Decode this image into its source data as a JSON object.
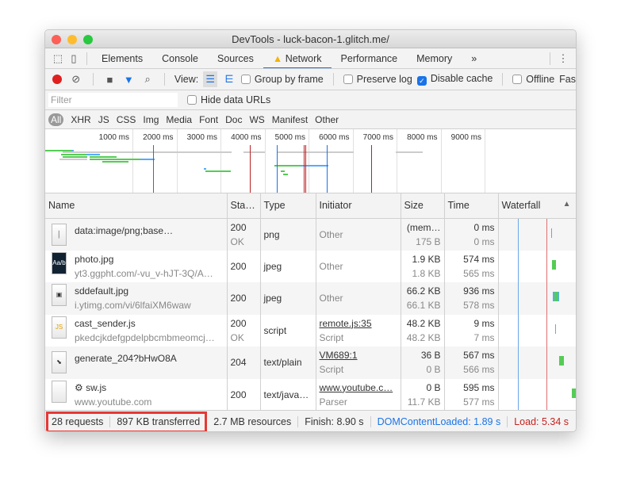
{
  "window": {
    "title": "DevTools - luck-bacon-1.glitch.me/"
  },
  "tabs": [
    {
      "label": "Elements"
    },
    {
      "label": "Console"
    },
    {
      "label": "Sources"
    },
    {
      "label": "Network",
      "active": true,
      "warning": true
    },
    {
      "label": "Performance"
    },
    {
      "label": "Memory"
    }
  ],
  "toolbar": {
    "view_label": "View:",
    "group_by_frame": {
      "label": "Group by frame",
      "checked": false
    },
    "preserve_log": {
      "label": "Preserve log",
      "checked": false
    },
    "disable_cache": {
      "label": "Disable cache",
      "checked": true
    },
    "offline": {
      "label": "Offline",
      "checked": false
    },
    "throttle": "Fas"
  },
  "filter": {
    "placeholder": "Filter",
    "hide_data_urls": {
      "label": "Hide data URLs",
      "checked": false
    }
  },
  "types": [
    "All",
    "XHR",
    "JS",
    "CSS",
    "Img",
    "Media",
    "Font",
    "Doc",
    "WS",
    "Manifest",
    "Other"
  ],
  "overview": {
    "ticks": [
      "1000 ms",
      "2000 ms",
      "3000 ms",
      "4000 ms",
      "5000 ms",
      "6000 ms",
      "7000 ms",
      "8000 ms",
      "9000 ms"
    ]
  },
  "columns": [
    "Name",
    "Sta…",
    "Type",
    "Initiator",
    "Size",
    "Time",
    "Waterfall"
  ],
  "rows": [
    {
      "name": "data:image/png;base…",
      "sub": "",
      "status": "200",
      "status2": "OK",
      "type": "png",
      "initiator": "Other",
      "initiator2": "",
      "size": "(mem…",
      "size2": "175 B",
      "time": "0 ms",
      "time2": "0 ms"
    },
    {
      "name": "photo.jpg",
      "sub": "yt3.ggpht.com/-vu_v-hJT-3Q/A…",
      "status": "200",
      "status2": "",
      "type": "jpeg",
      "initiator": "Other",
      "initiator2": "",
      "size": "1.9 KB",
      "size2": "1.8 KB",
      "time": "574 ms",
      "time2": "565 ms"
    },
    {
      "name": "sddefault.jpg",
      "sub": "i.ytimg.com/vi/6lfaiXM6waw",
      "status": "200",
      "status2": "",
      "type": "jpeg",
      "initiator": "Other",
      "initiator2": "",
      "size": "66.2 KB",
      "size2": "66.1 KB",
      "time": "936 ms",
      "time2": "578 ms"
    },
    {
      "name": "cast_sender.js",
      "sub": "pkedcjkdefgpdelpbcmbmeomcj…",
      "status": "200",
      "status2": "OK",
      "type": "script",
      "initiator": "remote.js:35",
      "initiator2": "Script",
      "size": "48.2 KB",
      "size2": "48.2 KB",
      "time": "9 ms",
      "time2": "7 ms"
    },
    {
      "name": "generate_204?bHwO8A",
      "sub": "",
      "status": "204",
      "status2": "",
      "type": "text/plain",
      "initiator": "VM689:1",
      "initiator2": "Script",
      "size": "36 B",
      "size2": "0 B",
      "time": "567 ms",
      "time2": "566 ms"
    },
    {
      "name": "sw.js",
      "sub": "www.youtube.com",
      "status": "200",
      "status2": "",
      "type": "text/java…",
      "initiator": "www.youtube.c…",
      "initiator2": "Parser",
      "size": "0 B",
      "size2": "11.7 KB",
      "time": "595 ms",
      "time2": "577 ms"
    }
  ],
  "status": {
    "requests": "28 requests",
    "transferred": "897 KB transferred",
    "resources": "2.7 MB resources",
    "finish": "Finish: 8.90 s",
    "dcl": "DOMContentLoaded: 1.89 s",
    "load": "Load: 5.34 s"
  },
  "colors": {
    "accent": "#1a73e8",
    "dcl": "#1a73e8",
    "load": "#c5221f",
    "highlight": "#e53935"
  }
}
